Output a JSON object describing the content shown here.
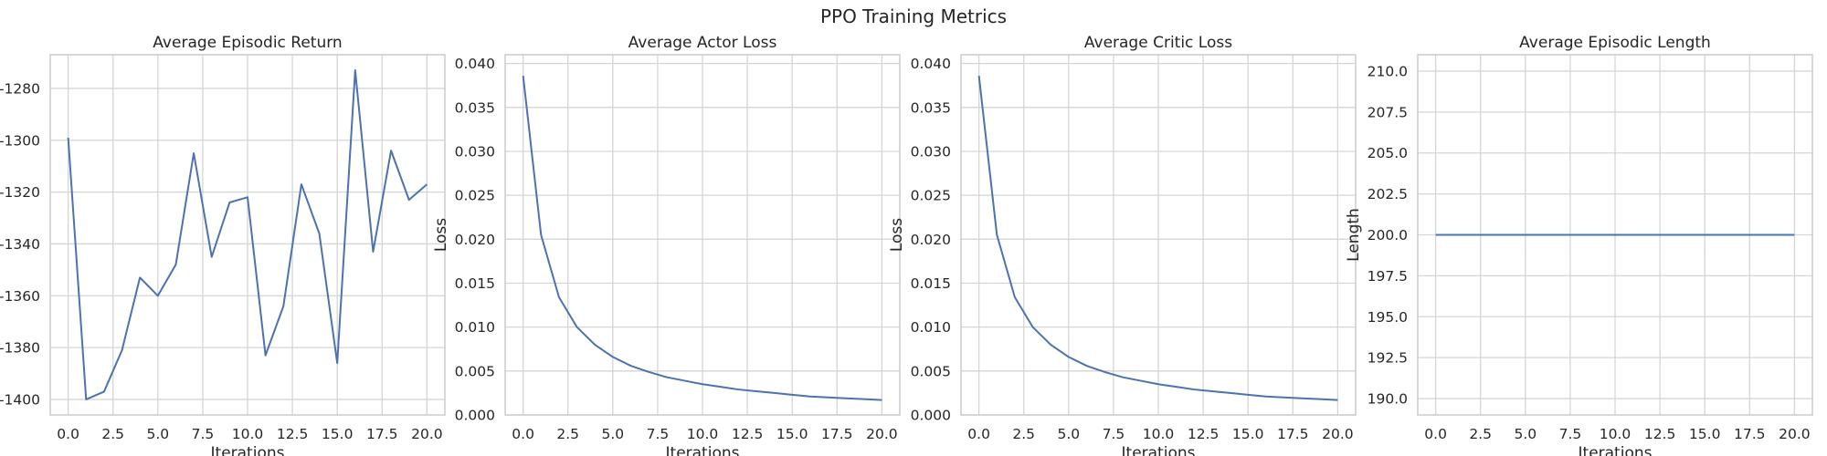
{
  "figure": {
    "suptitle": "PPO Training Metrics"
  },
  "colors": {
    "line": "#4c72b0",
    "grid": "#d5d5d5",
    "spine": "#cccccc",
    "text": "#262626"
  },
  "chart_data": [
    {
      "type": "line",
      "title": "Average Episodic Return",
      "xlabel": "Iterations",
      "ylabel": "",
      "grid": true,
      "xlim": [
        -1.0,
        21.0
      ],
      "ylim": [
        -1406.0,
        -1267.0
      ],
      "x_ticks": [
        0.0,
        2.5,
        5.0,
        7.5,
        10.0,
        12.5,
        15.0,
        17.5,
        20.0
      ],
      "x_tick_labels": [
        "0.0",
        "2.5",
        "5.0",
        "7.5",
        "10.0",
        "12.5",
        "15.0",
        "17.5",
        "20.0"
      ],
      "y_ticks": [
        -1400,
        -1380,
        -1360,
        -1340,
        -1320,
        -1300,
        -1280
      ],
      "y_tick_labels": [
        "-1400",
        "-1380",
        "-1360",
        "-1340",
        "-1320",
        "-1300",
        "-1280"
      ],
      "series": [
        {
          "x": [
            0,
            1,
            2,
            3,
            4,
            5,
            6,
            7,
            8,
            9,
            10,
            11,
            12,
            13,
            14,
            15,
            16,
            17,
            18,
            19,
            20
          ],
          "values": [
            -1299,
            -1400,
            -1397,
            -1381,
            -1353,
            -1360,
            -1348,
            -1305,
            -1345,
            -1324,
            -1322,
            -1383,
            -1364,
            -1317,
            -1336,
            -1386,
            -1273,
            -1343,
            -1304,
            -1323,
            -1317
          ]
        }
      ]
    },
    {
      "type": "line",
      "title": "Average Actor Loss",
      "xlabel": "Iterations",
      "ylabel": "Loss",
      "grid": true,
      "xlim": [
        -1.0,
        21.0
      ],
      "ylim": [
        0.0,
        0.041
      ],
      "x_ticks": [
        0.0,
        2.5,
        5.0,
        7.5,
        10.0,
        12.5,
        15.0,
        17.5,
        20.0
      ],
      "x_tick_labels": [
        "0.0",
        "2.5",
        "5.0",
        "7.5",
        "10.0",
        "12.5",
        "15.0",
        "17.5",
        "20.0"
      ],
      "y_ticks": [
        0.0,
        0.005,
        0.01,
        0.015,
        0.02,
        0.025,
        0.03,
        0.035,
        0.04
      ],
      "y_tick_labels": [
        "0.000",
        "0.005",
        "0.010",
        "0.015",
        "0.020",
        "0.025",
        "0.030",
        "0.035",
        "0.040"
      ],
      "series": [
        {
          "x": [
            0,
            1,
            2,
            3,
            4,
            5,
            6,
            7,
            8,
            9,
            10,
            11,
            12,
            13,
            14,
            15,
            16,
            17,
            18,
            19,
            20
          ],
          "values": [
            0.0386,
            0.0205,
            0.0134,
            0.01,
            0.008,
            0.0066,
            0.0056,
            0.0049,
            0.0043,
            0.0039,
            0.0035,
            0.0032,
            0.0029,
            0.0027,
            0.0025,
            0.0023,
            0.0021,
            0.002,
            0.0019,
            0.0018,
            0.0017
          ]
        }
      ]
    },
    {
      "type": "line",
      "title": "Average Critic Loss",
      "xlabel": "Iterations",
      "ylabel": "Loss",
      "grid": true,
      "xlim": [
        -1.0,
        21.0
      ],
      "ylim": [
        0.0,
        0.041
      ],
      "x_ticks": [
        0.0,
        2.5,
        5.0,
        7.5,
        10.0,
        12.5,
        15.0,
        17.5,
        20.0
      ],
      "x_tick_labels": [
        "0.0",
        "2.5",
        "5.0",
        "7.5",
        "10.0",
        "12.5",
        "15.0",
        "17.5",
        "20.0"
      ],
      "y_ticks": [
        0.0,
        0.005,
        0.01,
        0.015,
        0.02,
        0.025,
        0.03,
        0.035,
        0.04
      ],
      "y_tick_labels": [
        "0.000",
        "0.005",
        "0.010",
        "0.015",
        "0.020",
        "0.025",
        "0.030",
        "0.035",
        "0.040"
      ],
      "series": [
        {
          "x": [
            0,
            1,
            2,
            3,
            4,
            5,
            6,
            7,
            8,
            9,
            10,
            11,
            12,
            13,
            14,
            15,
            16,
            17,
            18,
            19,
            20
          ],
          "values": [
            0.0386,
            0.0205,
            0.0134,
            0.01,
            0.008,
            0.0066,
            0.0056,
            0.0049,
            0.0043,
            0.0039,
            0.0035,
            0.0032,
            0.0029,
            0.0027,
            0.0025,
            0.0023,
            0.0021,
            0.002,
            0.0019,
            0.0018,
            0.0017
          ]
        }
      ]
    },
    {
      "type": "line",
      "title": "Average Episodic Length",
      "xlabel": "Iterations",
      "ylabel": "Length",
      "grid": true,
      "xlim": [
        -1.0,
        21.0
      ],
      "ylim": [
        189.0,
        211.0
      ],
      "x_ticks": [
        0.0,
        2.5,
        5.0,
        7.5,
        10.0,
        12.5,
        15.0,
        17.5,
        20.0
      ],
      "x_tick_labels": [
        "0.0",
        "2.5",
        "5.0",
        "7.5",
        "10.0",
        "12.5",
        "15.0",
        "17.5",
        "20.0"
      ],
      "y_ticks": [
        190.0,
        192.5,
        195.0,
        197.5,
        200.0,
        202.5,
        205.0,
        207.5,
        210.0
      ],
      "y_tick_labels": [
        "190.0",
        "192.5",
        "195.0",
        "197.5",
        "200.0",
        "202.5",
        "205.0",
        "207.5",
        "210.0"
      ],
      "series": [
        {
          "x": [
            0,
            1,
            2,
            3,
            4,
            5,
            6,
            7,
            8,
            9,
            10,
            11,
            12,
            13,
            14,
            15,
            16,
            17,
            18,
            19,
            20
          ],
          "values": [
            200,
            200,
            200,
            200,
            200,
            200,
            200,
            200,
            200,
            200,
            200,
            200,
            200,
            200,
            200,
            200,
            200,
            200,
            200,
            200,
            200
          ]
        }
      ]
    }
  ]
}
